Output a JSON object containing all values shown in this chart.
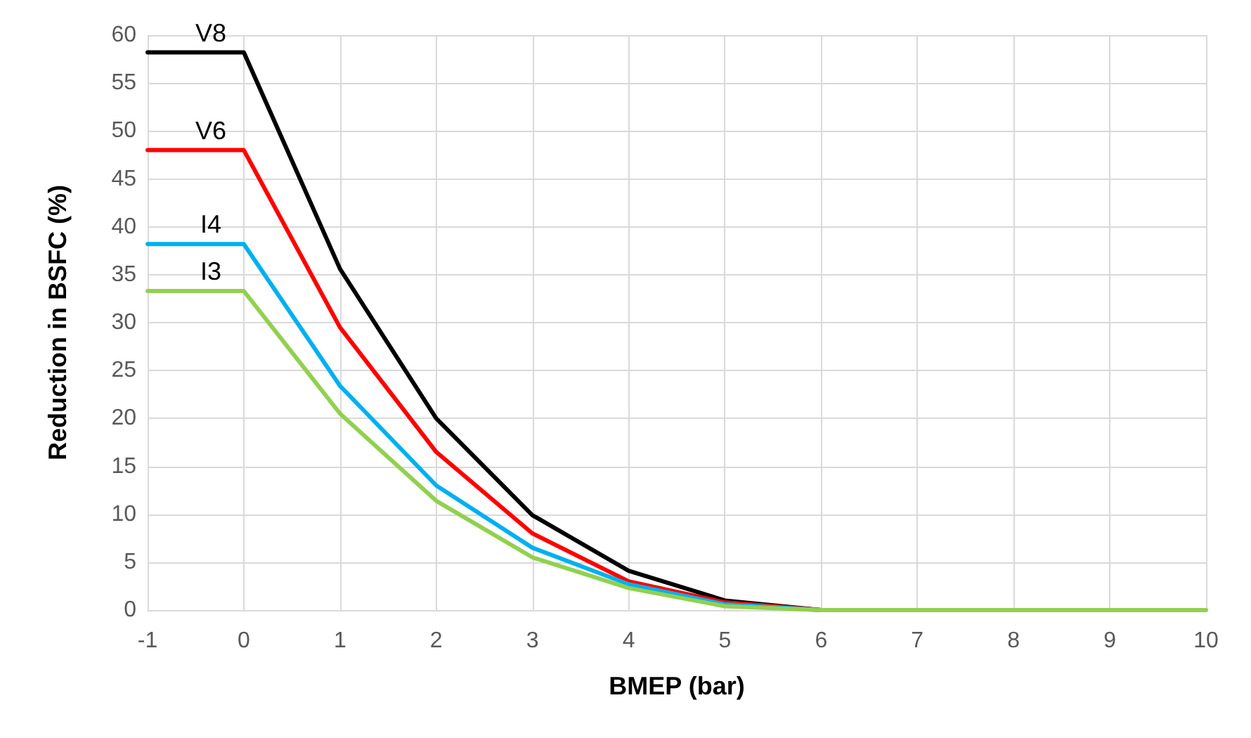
{
  "chart_data": {
    "type": "line",
    "xlabel": "BMEP (bar)",
    "ylabel": "Reduction in BSFC (%)",
    "x": [
      -1,
      0,
      1,
      2,
      3,
      4,
      5,
      6,
      7,
      8,
      9,
      10
    ],
    "series": [
      {
        "name": "V8",
        "color": "#000000",
        "values": [
          58.2,
          58.2,
          35.6,
          20,
          9.9,
          4.1,
          1,
          0,
          0,
          0,
          null,
          null
        ]
      },
      {
        "name": "V6",
        "color": "#ff0000",
        "values": [
          48,
          48,
          29.5,
          16.5,
          8,
          3,
          0.8,
          0,
          0,
          0,
          null,
          null
        ]
      },
      {
        "name": "I4",
        "color": "#00b0f0",
        "values": [
          38.2,
          38.2,
          23.4,
          13,
          6.5,
          2.7,
          0.6,
          0,
          0,
          0,
          null,
          null
        ]
      },
      {
        "name": "I3",
        "color": "#92d050",
        "values": [
          33.3,
          33.3,
          20.5,
          11.4,
          5.5,
          2.3,
          0.4,
          0,
          0,
          0,
          0,
          0
        ]
      }
    ],
    "xlim": [
      -1,
      10
    ],
    "xticks": [
      -1,
      0,
      1,
      2,
      3,
      4,
      5,
      6,
      7,
      8,
      9,
      10
    ],
    "ylim": [
      0,
      60
    ],
    "yticks": [
      0,
      5,
      10,
      15,
      20,
      25,
      30,
      35,
      40,
      45,
      50,
      55,
      60
    ],
    "grid": true,
    "legend": false,
    "marker": "none",
    "line_style": "solid"
  }
}
